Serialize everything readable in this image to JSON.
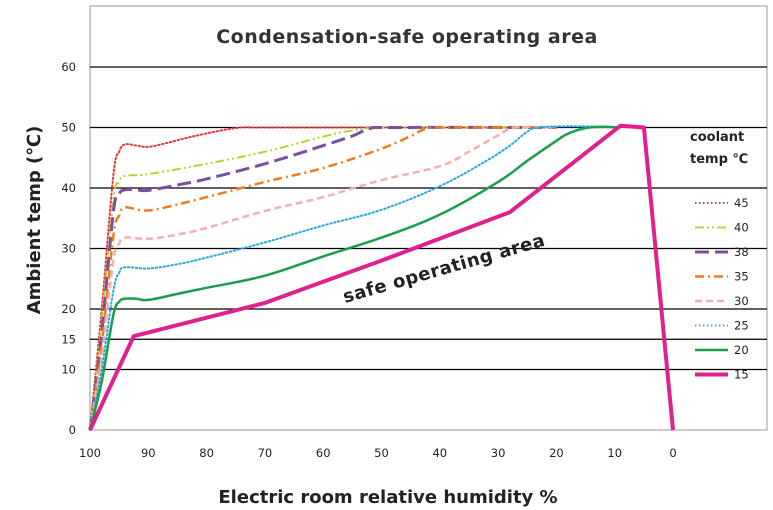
{
  "chart_data": {
    "type": "line",
    "title": "Condensation-safe operating area",
    "xlabel": "Electric room relative humidity %",
    "ylabel": "Ambient temp (℃)",
    "x_ticks": [
      "100",
      "90",
      "80",
      "70",
      "60",
      "50",
      "40",
      "30",
      "20",
      "10",
      "0"
    ],
    "y_ticks": [
      "0",
      "10",
      "15",
      "20",
      "30",
      "40",
      "50",
      "60"
    ],
    "xlim": [
      100,
      0
    ],
    "ylim": [
      0,
      60
    ],
    "grid": "horizontal",
    "legend_title": "coolant temp ℃",
    "legend_position": "right",
    "annotation": "safe operating area",
    "series": [
      {
        "name": "45",
        "color": "#e53935",
        "style": "dotted",
        "points": [
          [
            100,
            0
          ],
          [
            98,
            20
          ],
          [
            96,
            42
          ],
          [
            95,
            46
          ],
          [
            94,
            47.2
          ],
          [
            92,
            47
          ],
          [
            90,
            46.8
          ],
          [
            87,
            47.4
          ],
          [
            82,
            48.6
          ],
          [
            75,
            49.9
          ],
          [
            70,
            50
          ],
          [
            50,
            50
          ],
          [
            20,
            50
          ]
        ]
      },
      {
        "name": "40",
        "color": "#b5d334",
        "style": "dashdotdot",
        "points": [
          [
            100,
            0
          ],
          [
            98,
            18
          ],
          [
            96,
            38
          ],
          [
            95,
            41
          ],
          [
            94,
            42
          ],
          [
            90,
            42.3
          ],
          [
            80,
            44
          ],
          [
            70,
            46
          ],
          [
            60,
            48.5
          ],
          [
            55,
            49.5
          ],
          [
            48,
            50
          ],
          [
            20,
            50
          ]
        ]
      },
      {
        "name": "38",
        "color": "#7b4fa0",
        "style": "longdash",
        "points": [
          [
            100,
            0
          ],
          [
            98,
            16
          ],
          [
            96,
            36
          ],
          [
            95,
            39
          ],
          [
            94,
            39.7
          ],
          [
            92,
            39.7
          ],
          [
            90,
            39.6
          ],
          [
            85,
            40.5
          ],
          [
            80,
            41.5
          ],
          [
            70,
            44
          ],
          [
            60,
            47
          ],
          [
            55,
            48.6
          ],
          [
            52,
            49.8
          ],
          [
            48,
            50
          ],
          [
            20,
            50
          ]
        ]
      },
      {
        "name": "35",
        "color": "#f07b1e",
        "style": "dashdot",
        "points": [
          [
            100,
            0
          ],
          [
            98,
            14
          ],
          [
            96,
            32
          ],
          [
            95,
            35.5
          ],
          [
            94,
            36.8
          ],
          [
            91,
            36.3
          ],
          [
            88,
            36.6
          ],
          [
            80,
            38.5
          ],
          [
            70,
            41
          ],
          [
            60,
            43.3
          ],
          [
            50,
            46.5
          ],
          [
            45,
            48.6
          ],
          [
            42,
            49.9
          ],
          [
            38,
            50
          ],
          [
            20,
            50
          ]
        ]
      },
      {
        "name": "30",
        "color": "#f4b0b0",
        "style": "dashed",
        "points": [
          [
            100,
            0
          ],
          [
            98,
            12
          ],
          [
            96,
            28
          ],
          [
            95,
            30.8
          ],
          [
            94,
            31.8
          ],
          [
            90,
            31.6
          ],
          [
            85,
            32.3
          ],
          [
            80,
            33.4
          ],
          [
            70,
            36.2
          ],
          [
            60,
            38.5
          ],
          [
            50,
            41.3
          ],
          [
            40,
            43.6
          ],
          [
            35,
            46
          ],
          [
            30,
            48.7
          ],
          [
            27,
            50
          ],
          [
            20,
            50
          ]
        ]
      },
      {
        "name": "25",
        "color": "#29a8e0",
        "style": "dotted",
        "points": [
          [
            100,
            0
          ],
          [
            98,
            10
          ],
          [
            96,
            23
          ],
          [
            95,
            26
          ],
          [
            94,
            26.9
          ],
          [
            90,
            26.7
          ],
          [
            85,
            27.4
          ],
          [
            80,
            28.5
          ],
          [
            70,
            31
          ],
          [
            60,
            33.8
          ],
          [
            50,
            36.4
          ],
          [
            40,
            40.3
          ],
          [
            32,
            44.5
          ],
          [
            28,
            47
          ],
          [
            25,
            49.3
          ],
          [
            23,
            50
          ],
          [
            18,
            50.2
          ],
          [
            10,
            50.1
          ]
        ]
      },
      {
        "name": "20",
        "color": "#1a9e4b",
        "style": "solid",
        "points": [
          [
            100,
            0
          ],
          [
            98,
            8
          ],
          [
            96,
            19
          ],
          [
            95,
            21.2
          ],
          [
            94,
            21.7
          ],
          [
            92,
            21.7
          ],
          [
            90,
            21.5
          ],
          [
            85,
            22.5
          ],
          [
            80,
            23.5
          ],
          [
            70,
            25.5
          ],
          [
            60,
            28.7
          ],
          [
            50,
            31.8
          ],
          [
            40,
            35.6
          ],
          [
            30,
            41
          ],
          [
            25,
            44.5
          ],
          [
            20,
            47.8
          ],
          [
            18,
            49
          ],
          [
            15,
            49.9
          ],
          [
            12,
            50.1
          ],
          [
            9,
            50
          ]
        ]
      },
      {
        "name": "15",
        "color": "#e0208f",
        "style": "solid",
        "points": [
          [
            100,
            0
          ],
          [
            92.5,
            15.5
          ],
          [
            70,
            21
          ],
          [
            50,
            28
          ],
          [
            28,
            36
          ],
          [
            9,
            50.3
          ],
          [
            5,
            50
          ],
          [
            0,
            0
          ]
        ]
      }
    ]
  }
}
